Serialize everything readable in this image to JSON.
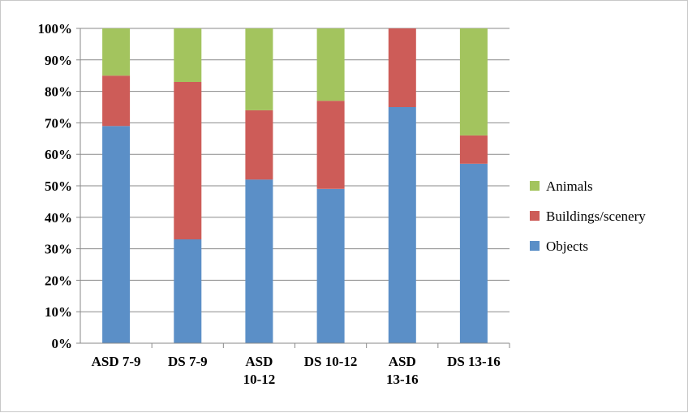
{
  "chart_data": {
    "type": "bar",
    "stacked": true,
    "percent": true,
    "categories": [
      [
        "ASD 7-9"
      ],
      [
        "DS 7-9"
      ],
      [
        "ASD",
        "10-12"
      ],
      [
        "DS 10-12"
      ],
      [
        "ASD",
        "13-16"
      ],
      [
        "DS 13-16"
      ]
    ],
    "series": [
      {
        "name": "Objects",
        "color": "#5b8fc7",
        "values": [
          69,
          33,
          52,
          49,
          75,
          57
        ]
      },
      {
        "name": "Buildings/scenery",
        "color": "#cd5c58",
        "values": [
          16,
          50,
          22,
          28,
          25,
          9
        ]
      },
      {
        "name": "Animals",
        "color": "#a3c45e",
        "values": [
          15,
          17,
          26,
          23,
          0,
          34
        ]
      }
    ],
    "legend_order": [
      "Animals",
      "Buildings/scenery",
      "Objects"
    ],
    "legend_position": "right",
    "ylim": [
      0,
      100
    ],
    "yticks": [
      "0%",
      "10%",
      "20%",
      "30%",
      "40%",
      "50%",
      "60%",
      "70%",
      "80%",
      "90%",
      "100%"
    ],
    "grid": true
  }
}
